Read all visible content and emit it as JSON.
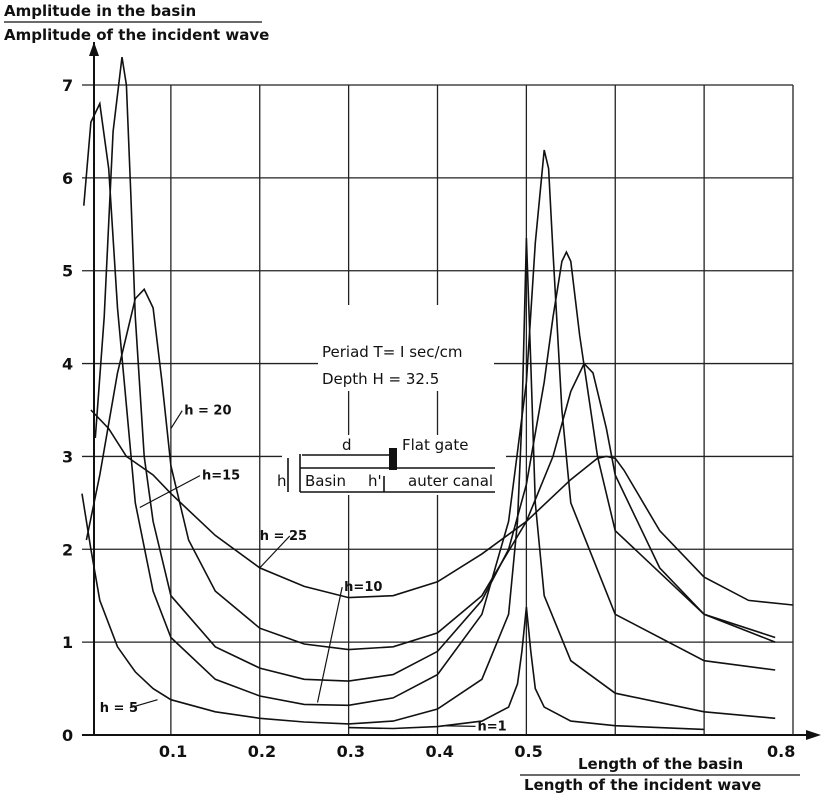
{
  "chart_data": {
    "type": "line",
    "ylabel_top": "Amplitude in the basin",
    "ylabel_bottom": "Amplitude of the incident wave",
    "xlabel_top": "Length of the basin",
    "xlabel_bottom": "Length of the incident wave",
    "xlim": [
      0.0,
      0.8
    ],
    "ylim": [
      0,
      7
    ],
    "x_ticks": [
      "0.1",
      "0.2",
      "0.3",
      "0.4",
      "0.5",
      "0.8"
    ],
    "y_ticks": [
      "0",
      "1",
      "2",
      "3",
      "4",
      "5",
      "6",
      "7"
    ],
    "grid": true,
    "annotation_period": "Periad T= I sec/cm",
    "annotation_depth": "Depth H = 32.5",
    "inset": {
      "d": "d",
      "h": "h",
      "h_prime": "h'",
      "basin": "Basin",
      "flat_gate": "Flat gate",
      "outer_canal": "auter canal"
    },
    "series": [
      {
        "name": "h = 5",
        "x": [
          0.0,
          0.01,
          0.02,
          0.04,
          0.06,
          0.08,
          0.1,
          0.15,
          0.2,
          0.25,
          0.3,
          0.35,
          0.4,
          0.45,
          0.48,
          0.49,
          0.495,
          0.5,
          0.505,
          0.51,
          0.52,
          0.55,
          0.6,
          0.7,
          0.78
        ],
        "y": [
          2.6,
          2.0,
          1.45,
          0.95,
          0.68,
          0.5,
          0.38,
          0.25,
          0.18,
          0.14,
          0.12,
          0.15,
          0.28,
          0.6,
          1.3,
          2.3,
          3.4,
          5.35,
          4.0,
          2.5,
          1.5,
          0.8,
          0.45,
          0.25,
          0.18
        ]
      },
      {
        "name": "h=1",
        "x": [
          0.3,
          0.35,
          0.4,
          0.45,
          0.48,
          0.49,
          0.495,
          0.5,
          0.505,
          0.51,
          0.52,
          0.55,
          0.6,
          0.7
        ],
        "y": [
          0.08,
          0.07,
          0.09,
          0.15,
          0.3,
          0.55,
          0.9,
          1.38,
          0.9,
          0.5,
          0.3,
          0.15,
          0.1,
          0.06
        ]
      },
      {
        "name": "h=10",
        "x": [
          0.002,
          0.01,
          0.02,
          0.03,
          0.04,
          0.06,
          0.08,
          0.1,
          0.15,
          0.2,
          0.25,
          0.3,
          0.35,
          0.4,
          0.45,
          0.48,
          0.5,
          0.51,
          0.52,
          0.525,
          0.53,
          0.54,
          0.55,
          0.6,
          0.7,
          0.78
        ],
        "y": [
          5.7,
          6.6,
          6.8,
          6.1,
          4.6,
          2.5,
          1.55,
          1.05,
          0.6,
          0.42,
          0.33,
          0.32,
          0.4,
          0.65,
          1.3,
          2.3,
          3.8,
          5.3,
          6.3,
          6.1,
          5.2,
          3.5,
          2.5,
          1.3,
          0.8,
          0.7
        ]
      },
      {
        "name": "h=15",
        "x": [
          0.015,
          0.025,
          0.035,
          0.045,
          0.05,
          0.055,
          0.06,
          0.07,
          0.08,
          0.1,
          0.15,
          0.2,
          0.25,
          0.3,
          0.35,
          0.4,
          0.45,
          0.48,
          0.5,
          0.52,
          0.53,
          0.54,
          0.545,
          0.55,
          0.56,
          0.58,
          0.6,
          0.7,
          0.78
        ],
        "y": [
          3.2,
          4.5,
          6.5,
          7.3,
          7.0,
          5.8,
          4.5,
          3.0,
          2.3,
          1.5,
          0.95,
          0.72,
          0.6,
          0.58,
          0.65,
          0.9,
          1.45,
          2.0,
          2.7,
          3.8,
          4.5,
          5.1,
          5.2,
          5.1,
          4.3,
          3.0,
          2.2,
          1.3,
          1.0
        ]
      },
      {
        "name": "h = 20",
        "x": [
          0.005,
          0.02,
          0.04,
          0.06,
          0.07,
          0.08,
          0.09,
          0.1,
          0.12,
          0.15,
          0.2,
          0.25,
          0.3,
          0.35,
          0.4,
          0.45,
          0.5,
          0.53,
          0.55,
          0.565,
          0.575,
          0.59,
          0.6,
          0.65,
          0.7,
          0.78
        ],
        "y": [
          2.1,
          2.8,
          3.9,
          4.7,
          4.8,
          4.6,
          3.8,
          2.9,
          2.1,
          1.55,
          1.15,
          0.98,
          0.92,
          0.95,
          1.1,
          1.5,
          2.3,
          3.0,
          3.7,
          4.0,
          3.9,
          3.3,
          2.8,
          1.8,
          1.3,
          1.05
        ]
      },
      {
        "name": "h = 25",
        "x": [
          0.01,
          0.03,
          0.05,
          0.08,
          0.1,
          0.15,
          0.2,
          0.25,
          0.3,
          0.35,
          0.4,
          0.45,
          0.5,
          0.55,
          0.58,
          0.59,
          0.6,
          0.61,
          0.65,
          0.7,
          0.75,
          0.8
        ],
        "y": [
          3.5,
          3.3,
          3.0,
          2.8,
          2.6,
          2.15,
          1.8,
          1.6,
          1.48,
          1.5,
          1.65,
          1.95,
          2.3,
          2.75,
          2.98,
          3.0,
          2.98,
          2.85,
          2.2,
          1.7,
          1.45,
          1.4
        ]
      }
    ],
    "curve_labels": [
      {
        "text": "h = 20"
      },
      {
        "text": "h=15"
      },
      {
        "text": "h = 25"
      },
      {
        "text": "h=10"
      },
      {
        "text": "h = 5"
      },
      {
        "text": "h=1"
      }
    ]
  }
}
